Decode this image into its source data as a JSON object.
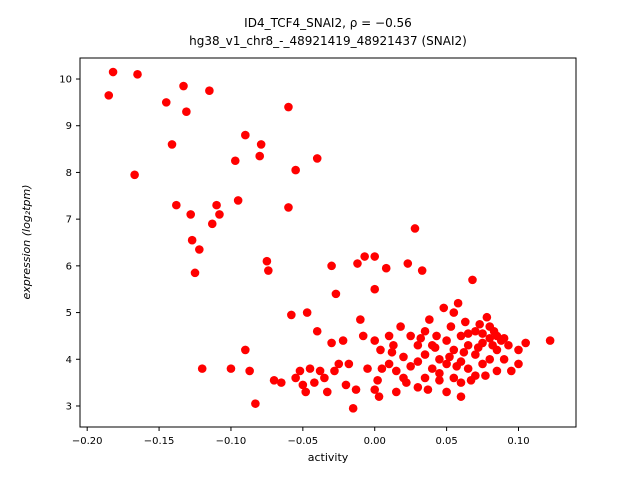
{
  "chart_data": {
    "type": "scatter",
    "title": "ID4_TCF4_SNAI2, ρ = −0.56",
    "subtitle": "hg38_v1_chr8_-_48921419_48921437 (SNAI2)",
    "xlabel": "activity",
    "ylabel": "expression (log₂tpm)",
    "xlim": [
      -0.205,
      0.14
    ],
    "ylim": [
      2.55,
      10.45
    ],
    "xticks": [
      -0.2,
      -0.15,
      -0.1,
      -0.05,
      0.0,
      0.05,
      0.1
    ],
    "xtick_labels": [
      "−0.20",
      "−0.15",
      "−0.10",
      "−0.05",
      "0.00",
      "0.05",
      "0.10"
    ],
    "yticks": [
      3,
      4,
      5,
      6,
      7,
      8,
      9,
      10
    ],
    "ytick_labels": [
      "3",
      "4",
      "5",
      "6",
      "7",
      "8",
      "9",
      "10"
    ],
    "marker_color": "#ff0000",
    "grid": false,
    "legend": null,
    "points": [
      [
        -0.185,
        9.65
      ],
      [
        -0.182,
        10.15
      ],
      [
        -0.165,
        10.1
      ],
      [
        -0.167,
        7.95
      ],
      [
        -0.145,
        9.5
      ],
      [
        -0.141,
        8.6
      ],
      [
        -0.138,
        7.3
      ],
      [
        -0.133,
        9.85
      ],
      [
        -0.131,
        9.3
      ],
      [
        -0.128,
        7.1
      ],
      [
        -0.127,
        6.55
      ],
      [
        -0.125,
        5.85
      ],
      [
        -0.122,
        6.35
      ],
      [
        -0.12,
        3.8
      ],
      [
        -0.115,
        9.75
      ],
      [
        -0.113,
        6.9
      ],
      [
        -0.11,
        7.3
      ],
      [
        -0.108,
        7.1
      ],
      [
        -0.1,
        3.8
      ],
      [
        -0.097,
        8.25
      ],
      [
        -0.095,
        7.4
      ],
      [
        -0.09,
        8.8
      ],
      [
        -0.09,
        4.2
      ],
      [
        -0.087,
        3.75
      ],
      [
        -0.083,
        3.05
      ],
      [
        -0.08,
        8.35
      ],
      [
        -0.079,
        8.6
      ],
      [
        -0.075,
        6.1
      ],
      [
        -0.074,
        5.9
      ],
      [
        -0.07,
        3.55
      ],
      [
        -0.065,
        3.5
      ],
      [
        -0.06,
        9.4
      ],
      [
        -0.06,
        7.25
      ],
      [
        -0.058,
        4.95
      ],
      [
        -0.055,
        8.05
      ],
      [
        -0.055,
        3.6
      ],
      [
        -0.052,
        3.75
      ],
      [
        -0.05,
        3.45
      ],
      [
        -0.048,
        3.3
      ],
      [
        -0.047,
        5.0
      ],
      [
        -0.045,
        3.8
      ],
      [
        -0.042,
        3.5
      ],
      [
        -0.04,
        8.3
      ],
      [
        -0.04,
        4.6
      ],
      [
        -0.038,
        3.75
      ],
      [
        -0.035,
        3.6
      ],
      [
        -0.033,
        3.3
      ],
      [
        -0.03,
        6.0
      ],
      [
        -0.03,
        4.35
      ],
      [
        -0.028,
        3.75
      ],
      [
        -0.027,
        5.4
      ],
      [
        -0.025,
        3.9
      ],
      [
        -0.022,
        4.4
      ],
      [
        -0.02,
        3.45
      ],
      [
        -0.018,
        3.9
      ],
      [
        -0.015,
        2.95
      ],
      [
        -0.013,
        3.35
      ],
      [
        -0.012,
        6.05
      ],
      [
        -0.01,
        4.85
      ],
      [
        -0.008,
        4.5
      ],
      [
        -0.007,
        6.2
      ],
      [
        -0.005,
        3.8
      ],
      [
        0.0,
        6.2
      ],
      [
        0.0,
        5.5
      ],
      [
        0.0,
        4.4
      ],
      [
        0.0,
        3.35
      ],
      [
        0.002,
        3.55
      ],
      [
        0.003,
        3.2
      ],
      [
        0.004,
        4.2
      ],
      [
        0.005,
        3.8
      ],
      [
        0.008,
        5.95
      ],
      [
        0.01,
        4.5
      ],
      [
        0.01,
        3.9
      ],
      [
        0.012,
        4.15
      ],
      [
        0.013,
        4.3
      ],
      [
        0.015,
        3.75
      ],
      [
        0.015,
        3.3
      ],
      [
        0.018,
        4.7
      ],
      [
        0.02,
        4.05
      ],
      [
        0.02,
        3.6
      ],
      [
        0.022,
        3.5
      ],
      [
        0.023,
        6.05
      ],
      [
        0.025,
        4.5
      ],
      [
        0.025,
        3.85
      ],
      [
        0.028,
        6.8
      ],
      [
        0.03,
        4.3
      ],
      [
        0.03,
        3.95
      ],
      [
        0.03,
        3.4
      ],
      [
        0.032,
        4.45
      ],
      [
        0.033,
        5.9
      ],
      [
        0.035,
        4.6
      ],
      [
        0.035,
        4.1
      ],
      [
        0.035,
        3.6
      ],
      [
        0.037,
        3.35
      ],
      [
        0.038,
        4.85
      ],
      [
        0.04,
        4.3
      ],
      [
        0.04,
        3.8
      ],
      [
        0.042,
        4.25
      ],
      [
        0.043,
        4.5
      ],
      [
        0.045,
        4.0
      ],
      [
        0.045,
        3.55
      ],
      [
        0.045,
        3.7
      ],
      [
        0.048,
        5.1
      ],
      [
        0.05,
        4.4
      ],
      [
        0.05,
        3.9
      ],
      [
        0.05,
        3.3
      ],
      [
        0.052,
        4.05
      ],
      [
        0.053,
        4.7
      ],
      [
        0.055,
        4.2
      ],
      [
        0.055,
        3.6
      ],
      [
        0.055,
        5.0
      ],
      [
        0.057,
        3.85
      ],
      [
        0.058,
        5.2
      ],
      [
        0.06,
        4.5
      ],
      [
        0.06,
        3.95
      ],
      [
        0.06,
        3.5
      ],
      [
        0.06,
        3.2
      ],
      [
        0.062,
        4.15
      ],
      [
        0.063,
        4.8
      ],
      [
        0.065,
        4.3
      ],
      [
        0.065,
        3.8
      ],
      [
        0.065,
        4.55
      ],
      [
        0.067,
        3.55
      ],
      [
        0.068,
        5.7
      ],
      [
        0.07,
        4.6
      ],
      [
        0.07,
        4.1
      ],
      [
        0.07,
        3.65
      ],
      [
        0.072,
        4.25
      ],
      [
        0.073,
        4.75
      ],
      [
        0.075,
        4.35
      ],
      [
        0.075,
        3.9
      ],
      [
        0.075,
        4.55
      ],
      [
        0.077,
        3.65
      ],
      [
        0.078,
        4.9
      ],
      [
        0.08,
        4.45
      ],
      [
        0.08,
        4.0
      ],
      [
        0.08,
        4.7
      ],
      [
        0.082,
        4.3
      ],
      [
        0.083,
        4.6
      ],
      [
        0.085,
        4.2
      ],
      [
        0.085,
        3.75
      ],
      [
        0.085,
        4.5
      ],
      [
        0.088,
        4.4
      ],
      [
        0.09,
        4.0
      ],
      [
        0.09,
        4.45
      ],
      [
        0.093,
        4.3
      ],
      [
        0.095,
        3.75
      ],
      [
        0.1,
        4.2
      ],
      [
        0.1,
        3.9
      ],
      [
        0.105,
        4.35
      ],
      [
        0.122,
        4.4
      ]
    ]
  }
}
